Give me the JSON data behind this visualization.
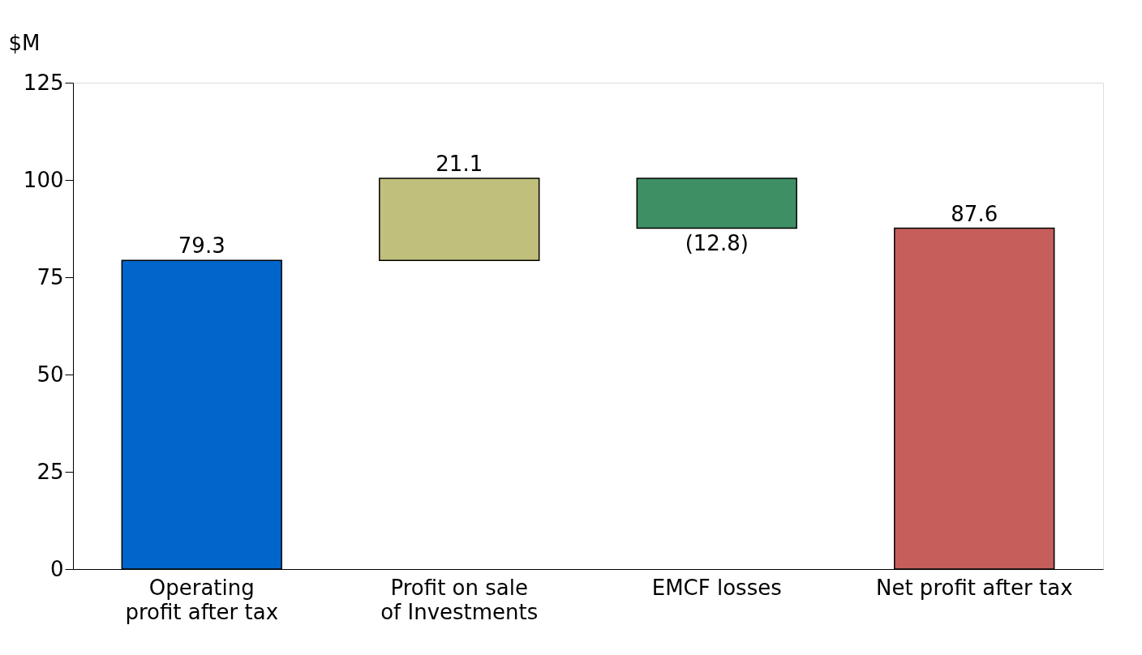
{
  "chart_data": {
    "type": "bar",
    "ylabel": "$M",
    "categories": [
      "Operating\nprofit after tax",
      "Profit on sale\nof Investments",
      "EMCF losses",
      "Net profit after tax"
    ],
    "values": [
      79.3,
      21.1,
      -12.8,
      87.6
    ],
    "base": [
      0,
      79.3,
      100.4,
      0
    ],
    "colors": [
      "#0066cc",
      "#c0c07c",
      "#3f8f65",
      "#c65e5c"
    ],
    "value_labels": [
      "79.3",
      "21.1",
      "(12.8)",
      "87.6"
    ],
    "ylim": [
      0,
      125
    ],
    "yticks": [
      0,
      25,
      50,
      75,
      100,
      125
    ],
    "grid": false
  }
}
